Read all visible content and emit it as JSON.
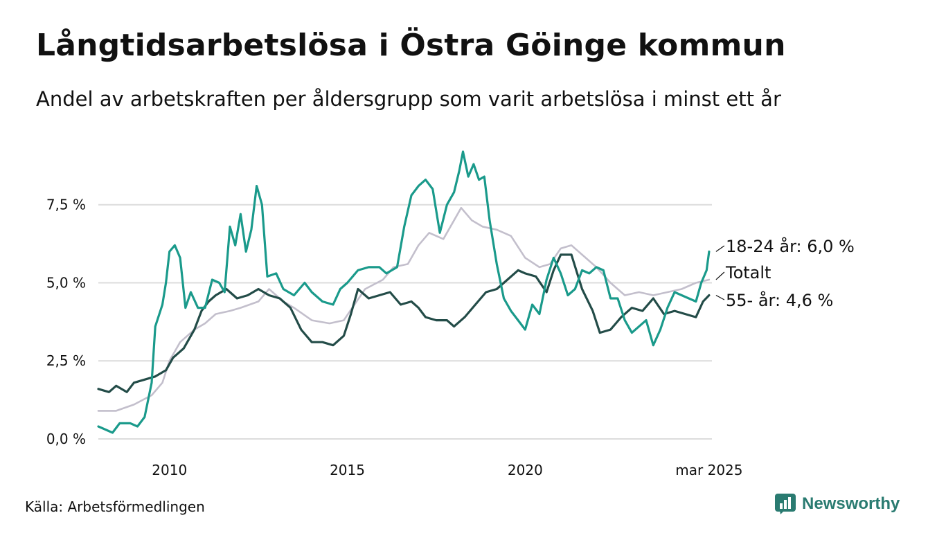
{
  "header": {
    "title": "Långtidsarbetslösa i Östra Göinge kommun",
    "subtitle": "Andel av arbetskraften per åldersgrupp som varit arbetslösa i minst ett år"
  },
  "footer": {
    "source": "Källa: Arbetsförmedlingen",
    "brand": "Newsworthy",
    "brand_icon": "newsworthy-logo-icon"
  },
  "chart_data": {
    "type": "line",
    "ylim": [
      0,
      9.4
    ],
    "xlim": [
      2008.0,
      2025.25
    ],
    "y_ticks": [
      {
        "value": 0,
        "label": "0,0 %"
      },
      {
        "value": 2.5,
        "label": "2,5 %"
      },
      {
        "value": 5,
        "label": "5,0 %"
      },
      {
        "value": 7.5,
        "label": "7,5 %"
      }
    ],
    "x_ticks": [
      {
        "value": 2010,
        "label": "2010"
      },
      {
        "value": 2015,
        "label": "2015"
      },
      {
        "value": 2020,
        "label": "2020"
      },
      {
        "value": 2025.17,
        "label": "mar 2025"
      }
    ],
    "grid": true,
    "series": [
      {
        "name": "Totalt",
        "label": "Totalt",
        "color": "#c3bfcc",
        "points": [
          [
            2008.0,
            0.9
          ],
          [
            2008.5,
            0.9
          ],
          [
            2009.0,
            1.1
          ],
          [
            2009.5,
            1.4
          ],
          [
            2009.8,
            1.8
          ],
          [
            2010.0,
            2.5
          ],
          [
            2010.3,
            3.1
          ],
          [
            2010.7,
            3.5
          ],
          [
            2011.0,
            3.7
          ],
          [
            2011.3,
            4.0
          ],
          [
            2011.7,
            4.1
          ],
          [
            2012.0,
            4.2
          ],
          [
            2012.5,
            4.4
          ],
          [
            2012.8,
            4.8
          ],
          [
            2013.2,
            4.4
          ],
          [
            2013.5,
            4.2
          ],
          [
            2014.0,
            3.8
          ],
          [
            2014.5,
            3.7
          ],
          [
            2014.9,
            3.8
          ],
          [
            2015.2,
            4.3
          ],
          [
            2015.5,
            4.8
          ],
          [
            2016.0,
            5.1
          ],
          [
            2016.3,
            5.5
          ],
          [
            2016.7,
            5.6
          ],
          [
            2017.0,
            6.2
          ],
          [
            2017.3,
            6.6
          ],
          [
            2017.7,
            6.4
          ],
          [
            2018.0,
            7.0
          ],
          [
            2018.2,
            7.4
          ],
          [
            2018.5,
            7.0
          ],
          [
            2018.8,
            6.8
          ],
          [
            2019.2,
            6.7
          ],
          [
            2019.6,
            6.5
          ],
          [
            2020.0,
            5.8
          ],
          [
            2020.4,
            5.5
          ],
          [
            2020.7,
            5.6
          ],
          [
            2021.0,
            6.1
          ],
          [
            2021.3,
            6.2
          ],
          [
            2021.7,
            5.8
          ],
          [
            2022.0,
            5.5
          ],
          [
            2022.4,
            5.0
          ],
          [
            2022.8,
            4.6
          ],
          [
            2023.2,
            4.7
          ],
          [
            2023.6,
            4.6
          ],
          [
            2024.0,
            4.7
          ],
          [
            2024.4,
            4.8
          ],
          [
            2024.8,
            5.0
          ],
          [
            2025.17,
            5.1
          ]
        ]
      },
      {
        "name": "55- år",
        "label": "55- år: 4,6 %",
        "color": "#234c48",
        "points": [
          [
            2008.0,
            1.6
          ],
          [
            2008.3,
            1.5
          ],
          [
            2008.5,
            1.7
          ],
          [
            2008.8,
            1.5
          ],
          [
            2009.0,
            1.8
          ],
          [
            2009.3,
            1.9
          ],
          [
            2009.6,
            2.0
          ],
          [
            2009.9,
            2.2
          ],
          [
            2010.1,
            2.6
          ],
          [
            2010.4,
            2.9
          ],
          [
            2010.7,
            3.5
          ],
          [
            2010.9,
            4.1
          ],
          [
            2011.1,
            4.4
          ],
          [
            2011.3,
            4.6
          ],
          [
            2011.6,
            4.8
          ],
          [
            2011.9,
            4.5
          ],
          [
            2012.2,
            4.6
          ],
          [
            2012.5,
            4.8
          ],
          [
            2012.8,
            4.6
          ],
          [
            2013.1,
            4.5
          ],
          [
            2013.4,
            4.2
          ],
          [
            2013.7,
            3.5
          ],
          [
            2014.0,
            3.1
          ],
          [
            2014.3,
            3.1
          ],
          [
            2014.6,
            3.0
          ],
          [
            2014.9,
            3.3
          ],
          [
            2015.1,
            4.0
          ],
          [
            2015.3,
            4.8
          ],
          [
            2015.6,
            4.5
          ],
          [
            2015.9,
            4.6
          ],
          [
            2016.2,
            4.7
          ],
          [
            2016.5,
            4.3
          ],
          [
            2016.8,
            4.4
          ],
          [
            2017.0,
            4.2
          ],
          [
            2017.2,
            3.9
          ],
          [
            2017.5,
            3.8
          ],
          [
            2017.8,
            3.8
          ],
          [
            2018.0,
            3.6
          ],
          [
            2018.3,
            3.9
          ],
          [
            2018.6,
            4.3
          ],
          [
            2018.9,
            4.7
          ],
          [
            2019.2,
            4.8
          ],
          [
            2019.5,
            5.1
          ],
          [
            2019.8,
            5.4
          ],
          [
            2020.0,
            5.3
          ],
          [
            2020.3,
            5.2
          ],
          [
            2020.6,
            4.7
          ],
          [
            2020.8,
            5.4
          ],
          [
            2021.0,
            5.9
          ],
          [
            2021.3,
            5.9
          ],
          [
            2021.6,
            4.8
          ],
          [
            2021.9,
            4.1
          ],
          [
            2022.1,
            3.4
          ],
          [
            2022.4,
            3.5
          ],
          [
            2022.7,
            3.9
          ],
          [
            2023.0,
            4.2
          ],
          [
            2023.3,
            4.1
          ],
          [
            2023.6,
            4.5
          ],
          [
            2023.9,
            4.0
          ],
          [
            2024.2,
            4.1
          ],
          [
            2024.5,
            4.0
          ],
          [
            2024.8,
            3.9
          ],
          [
            2025.0,
            4.4
          ],
          [
            2025.17,
            4.6
          ]
        ]
      },
      {
        "name": "18-24 år",
        "label": "18-24 år: 6,0 %",
        "color": "#1a9a8b",
        "points": [
          [
            2008.0,
            0.4
          ],
          [
            2008.2,
            0.3
          ],
          [
            2008.4,
            0.2
          ],
          [
            2008.6,
            0.5
          ],
          [
            2008.9,
            0.5
          ],
          [
            2009.1,
            0.4
          ],
          [
            2009.3,
            0.7
          ],
          [
            2009.5,
            1.8
          ],
          [
            2009.6,
            3.6
          ],
          [
            2009.8,
            4.3
          ],
          [
            2009.9,
            5.0
          ],
          [
            2010.0,
            6.0
          ],
          [
            2010.15,
            6.2
          ],
          [
            2010.3,
            5.8
          ],
          [
            2010.45,
            4.2
          ],
          [
            2010.6,
            4.7
          ],
          [
            2010.8,
            4.2
          ],
          [
            2011.0,
            4.2
          ],
          [
            2011.2,
            5.1
          ],
          [
            2011.4,
            5.0
          ],
          [
            2011.55,
            4.7
          ],
          [
            2011.7,
            6.8
          ],
          [
            2011.85,
            6.2
          ],
          [
            2012.0,
            7.2
          ],
          [
            2012.15,
            6.0
          ],
          [
            2012.3,
            6.7
          ],
          [
            2012.45,
            8.1
          ],
          [
            2012.6,
            7.5
          ],
          [
            2012.75,
            5.2
          ],
          [
            2013.0,
            5.3
          ],
          [
            2013.2,
            4.8
          ],
          [
            2013.5,
            4.6
          ],
          [
            2013.8,
            5.0
          ],
          [
            2014.0,
            4.7
          ],
          [
            2014.3,
            4.4
          ],
          [
            2014.6,
            4.3
          ],
          [
            2014.8,
            4.8
          ],
          [
            2015.0,
            5.0
          ],
          [
            2015.3,
            5.4
          ],
          [
            2015.6,
            5.5
          ],
          [
            2015.9,
            5.5
          ],
          [
            2016.1,
            5.3
          ],
          [
            2016.4,
            5.5
          ],
          [
            2016.6,
            6.8
          ],
          [
            2016.8,
            7.8
          ],
          [
            2017.0,
            8.1
          ],
          [
            2017.2,
            8.3
          ],
          [
            2017.4,
            8.0
          ],
          [
            2017.6,
            6.6
          ],
          [
            2017.8,
            7.5
          ],
          [
            2018.0,
            7.9
          ],
          [
            2018.15,
            8.6
          ],
          [
            2018.25,
            9.2
          ],
          [
            2018.4,
            8.4
          ],
          [
            2018.55,
            8.8
          ],
          [
            2018.7,
            8.3
          ],
          [
            2018.85,
            8.4
          ],
          [
            2019.0,
            7.0
          ],
          [
            2019.2,
            5.6
          ],
          [
            2019.4,
            4.5
          ],
          [
            2019.6,
            4.1
          ],
          [
            2019.8,
            3.8
          ],
          [
            2020.0,
            3.5
          ],
          [
            2020.2,
            4.3
          ],
          [
            2020.4,
            4.0
          ],
          [
            2020.6,
            5.1
          ],
          [
            2020.8,
            5.8
          ],
          [
            2021.0,
            5.3
          ],
          [
            2021.2,
            4.6
          ],
          [
            2021.4,
            4.8
          ],
          [
            2021.6,
            5.4
          ],
          [
            2021.8,
            5.3
          ],
          [
            2022.0,
            5.5
          ],
          [
            2022.2,
            5.4
          ],
          [
            2022.4,
            4.5
          ],
          [
            2022.6,
            4.5
          ],
          [
            2022.8,
            3.8
          ],
          [
            2023.0,
            3.4
          ],
          [
            2023.2,
            3.6
          ],
          [
            2023.4,
            3.8
          ],
          [
            2023.6,
            3.0
          ],
          [
            2023.8,
            3.5
          ],
          [
            2024.0,
            4.2
          ],
          [
            2024.2,
            4.7
          ],
          [
            2024.4,
            4.6
          ],
          [
            2024.6,
            4.5
          ],
          [
            2024.8,
            4.4
          ],
          [
            2024.95,
            5.0
          ],
          [
            2025.1,
            5.4
          ],
          [
            2025.17,
            6.0
          ]
        ]
      }
    ]
  }
}
